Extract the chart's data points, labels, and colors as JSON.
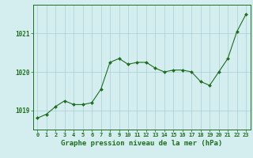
{
  "hours": [
    0,
    1,
    2,
    3,
    4,
    5,
    6,
    7,
    8,
    9,
    10,
    11,
    12,
    13,
    14,
    15,
    16,
    17,
    18,
    19,
    20,
    21,
    22,
    23
  ],
  "pressure": [
    1018.8,
    1018.9,
    1019.1,
    1019.25,
    1019.15,
    1019.15,
    1019.2,
    1019.55,
    1020.25,
    1020.35,
    1020.2,
    1020.25,
    1020.25,
    1020.1,
    1020.0,
    1020.05,
    1020.05,
    1020.0,
    1019.75,
    1019.65,
    1020.0,
    1020.35,
    1021.05,
    1021.5
  ],
  "line_color": "#1e6e1e",
  "marker_color": "#1e6e1e",
  "bg_color": "#d4eef0",
  "grid_color": "#aacfd5",
  "axes_bg": "#d4eef0",
  "xlabel": "Graphe pression niveau de la mer (hPa)",
  "xlabel_color": "#1e6e1e",
  "tick_label_color": "#1e6e1e",
  "border_color": "#1e6e1e",
  "ylim": [
    1018.5,
    1021.75
  ],
  "yticks": [
    1019,
    1020,
    1021
  ],
  "xtick_fontsize": 5.0,
  "ytick_fontsize": 5.5,
  "xlabel_fontsize": 6.5
}
